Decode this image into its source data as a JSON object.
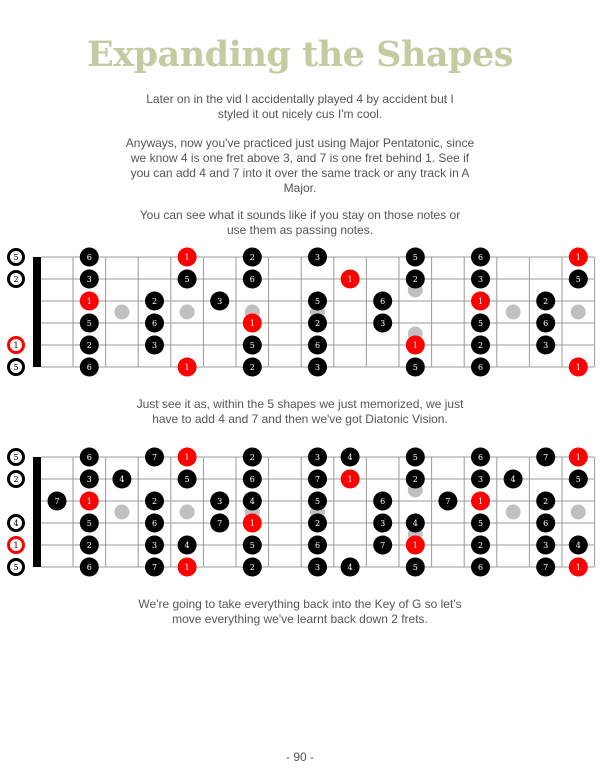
{
  "title": "Expanding the Shapes",
  "paragraphs": [
    "Later on in the vid I accidentally played 4 by accident but I styled it out nicely cus I'm cool.",
    "Anyways, now you've practiced just using Major Pentatonic, since we know 4 is one fret above 3, and 7 is one fret behind 1. See if you can add 4 and 7 into it over the same track or any track in A Major.",
    "You can see what it sounds like if you stay on those notes or use them as passing notes.",
    "Just see it as, within the 5 shapes we just memorized, we just have to add 4 and 7 and then we've got Diatonic Vision.",
    "We're going to take everything back into the Key of G so let's move everything we've learnt back down 2 frets."
  ],
  "page_number": "- 90 -",
  "colors": {
    "title": "#c3cca0",
    "root": "#ff0000",
    "note": "#000000",
    "marker": "#c0c0c0",
    "text": "#555555"
  },
  "fretboards": [
    {
      "fret_markers": [
        3,
        5,
        7,
        9,
        12,
        15,
        17
      ],
      "open_strings": [
        {
          "string": 1,
          "degree": "5",
          "root": false
        },
        {
          "string": 2,
          "degree": "2",
          "root": false
        },
        {
          "string": 5,
          "degree": "1",
          "root": true
        },
        {
          "string": 6,
          "degree": "5",
          "root": false
        }
      ],
      "notes": [
        {
          "fret": 2,
          "string": 1,
          "degree": "6"
        },
        {
          "fret": 2,
          "string": 2,
          "degree": "3"
        },
        {
          "fret": 2,
          "string": 3,
          "degree": "1",
          "root": true
        },
        {
          "fret": 2,
          "string": 4,
          "degree": "5"
        },
        {
          "fret": 2,
          "string": 5,
          "degree": "2"
        },
        {
          "fret": 2,
          "string": 6,
          "degree": "6"
        },
        {
          "fret": 4,
          "string": 3,
          "degree": "2"
        },
        {
          "fret": 4,
          "string": 4,
          "degree": "6"
        },
        {
          "fret": 4,
          "string": 5,
          "degree": "3"
        },
        {
          "fret": 5,
          "string": 1,
          "degree": "1",
          "root": true
        },
        {
          "fret": 5,
          "string": 2,
          "degree": "5"
        },
        {
          "fret": 5,
          "string": 6,
          "degree": "1",
          "root": true
        },
        {
          "fret": 6,
          "string": 3,
          "degree": "3"
        },
        {
          "fret": 7,
          "string": 1,
          "degree": "2"
        },
        {
          "fret": 7,
          "string": 2,
          "degree": "6"
        },
        {
          "fret": 7,
          "string": 4,
          "degree": "1",
          "root": true
        },
        {
          "fret": 7,
          "string": 5,
          "degree": "5"
        },
        {
          "fret": 7,
          "string": 6,
          "degree": "2"
        },
        {
          "fret": 9,
          "string": 1,
          "degree": "3"
        },
        {
          "fret": 9,
          "string": 3,
          "degree": "5"
        },
        {
          "fret": 9,
          "string": 4,
          "degree": "2"
        },
        {
          "fret": 9,
          "string": 5,
          "degree": "6"
        },
        {
          "fret": 9,
          "string": 6,
          "degree": "3"
        },
        {
          "fret": 10,
          "string": 2,
          "degree": "1",
          "root": true
        },
        {
          "fret": 11,
          "string": 3,
          "degree": "6"
        },
        {
          "fret": 11,
          "string": 4,
          "degree": "3"
        },
        {
          "fret": 12,
          "string": 1,
          "degree": "5"
        },
        {
          "fret": 12,
          "string": 2,
          "degree": "2"
        },
        {
          "fret": 12,
          "string": 5,
          "degree": "1",
          "root": true
        },
        {
          "fret": 12,
          "string": 6,
          "degree": "5"
        },
        {
          "fret": 14,
          "string": 1,
          "degree": "6"
        },
        {
          "fret": 14,
          "string": 2,
          "degree": "3"
        },
        {
          "fret": 14,
          "string": 3,
          "degree": "1",
          "root": true
        },
        {
          "fret": 14,
          "string": 4,
          "degree": "5"
        },
        {
          "fret": 14,
          "string": 5,
          "degree": "2"
        },
        {
          "fret": 14,
          "string": 6,
          "degree": "6"
        },
        {
          "fret": 16,
          "string": 3,
          "degree": "2"
        },
        {
          "fret": 16,
          "string": 4,
          "degree": "6"
        },
        {
          "fret": 16,
          "string": 5,
          "degree": "3"
        },
        {
          "fret": 17,
          "string": 1,
          "degree": "1",
          "root": true
        },
        {
          "fret": 17,
          "string": 2,
          "degree": "5"
        },
        {
          "fret": 17,
          "string": 6,
          "degree": "1",
          "root": true
        }
      ]
    },
    {
      "fret_markers": [
        3,
        5,
        7,
        9,
        12,
        15,
        17
      ],
      "open_strings": [
        {
          "string": 1,
          "degree": "5",
          "root": false
        },
        {
          "string": 2,
          "degree": "2",
          "root": false
        },
        {
          "string": 4,
          "degree": "4",
          "root": false
        },
        {
          "string": 5,
          "degree": "1",
          "root": true
        },
        {
          "string": 6,
          "degree": "5",
          "root": false
        }
      ],
      "notes": [
        {
          "fret": 1,
          "string": 3,
          "degree": "7"
        },
        {
          "fret": 2,
          "string": 1,
          "degree": "6"
        },
        {
          "fret": 2,
          "string": 2,
          "degree": "3"
        },
        {
          "fret": 2,
          "string": 3,
          "degree": "1",
          "root": true
        },
        {
          "fret": 2,
          "string": 4,
          "degree": "5"
        },
        {
          "fret": 2,
          "string": 5,
          "degree": "2"
        },
        {
          "fret": 2,
          "string": 6,
          "degree": "6"
        },
        {
          "fret": 3,
          "string": 2,
          "degree": "4"
        },
        {
          "fret": 4,
          "string": 1,
          "degree": "7"
        },
        {
          "fret": 4,
          "string": 3,
          "degree": "2"
        },
        {
          "fret": 4,
          "string": 4,
          "degree": "6"
        },
        {
          "fret": 4,
          "string": 5,
          "degree": "3"
        },
        {
          "fret": 4,
          "string": 6,
          "degree": "7"
        },
        {
          "fret": 5,
          "string": 1,
          "degree": "1",
          "root": true
        },
        {
          "fret": 5,
          "string": 2,
          "degree": "5"
        },
        {
          "fret": 5,
          "string": 5,
          "degree": "4"
        },
        {
          "fret": 5,
          "string": 6,
          "degree": "1",
          "root": true
        },
        {
          "fret": 6,
          "string": 3,
          "degree": "3"
        },
        {
          "fret": 6,
          "string": 4,
          "degree": "7"
        },
        {
          "fret": 7,
          "string": 1,
          "degree": "2"
        },
        {
          "fret": 7,
          "string": 2,
          "degree": "6"
        },
        {
          "fret": 7,
          "string": 3,
          "degree": "4"
        },
        {
          "fret": 7,
          "string": 4,
          "degree": "1",
          "root": true
        },
        {
          "fret": 7,
          "string": 5,
          "degree": "5"
        },
        {
          "fret": 7,
          "string": 6,
          "degree": "2"
        },
        {
          "fret": 9,
          "string": 1,
          "degree": "3"
        },
        {
          "fret": 9,
          "string": 2,
          "degree": "7"
        },
        {
          "fret": 9,
          "string": 3,
          "degree": "5"
        },
        {
          "fret": 9,
          "string": 4,
          "degree": "2"
        },
        {
          "fret": 9,
          "string": 5,
          "degree": "6"
        },
        {
          "fret": 9,
          "string": 6,
          "degree": "3"
        },
        {
          "fret": 10,
          "string": 1,
          "degree": "4"
        },
        {
          "fret": 10,
          "string": 2,
          "degree": "1",
          "root": true
        },
        {
          "fret": 10,
          "string": 6,
          "degree": "4"
        },
        {
          "fret": 11,
          "string": 3,
          "degree": "6"
        },
        {
          "fret": 11,
          "string": 4,
          "degree": "3"
        },
        {
          "fret": 11,
          "string": 5,
          "degree": "7"
        },
        {
          "fret": 12,
          "string": 1,
          "degree": "5"
        },
        {
          "fret": 12,
          "string": 2,
          "degree": "2"
        },
        {
          "fret": 12,
          "string": 4,
          "degree": "4"
        },
        {
          "fret": 12,
          "string": 5,
          "degree": "1",
          "root": true
        },
        {
          "fret": 12,
          "string": 6,
          "degree": "5"
        },
        {
          "fret": 13,
          "string": 3,
          "degree": "7"
        },
        {
          "fret": 14,
          "string": 1,
          "degree": "6"
        },
        {
          "fret": 14,
          "string": 2,
          "degree": "3"
        },
        {
          "fret": 14,
          "string": 3,
          "degree": "1",
          "root": true
        },
        {
          "fret": 14,
          "string": 4,
          "degree": "5"
        },
        {
          "fret": 14,
          "string": 5,
          "degree": "2"
        },
        {
          "fret": 14,
          "string": 6,
          "degree": "6"
        },
        {
          "fret": 15,
          "string": 2,
          "degree": "4"
        },
        {
          "fret": 16,
          "string": 1,
          "degree": "7"
        },
        {
          "fret": 16,
          "string": 3,
          "degree": "2"
        },
        {
          "fret": 16,
          "string": 4,
          "degree": "6"
        },
        {
          "fret": 16,
          "string": 5,
          "degree": "3"
        },
        {
          "fret": 16,
          "string": 6,
          "degree": "7"
        },
        {
          "fret": 17,
          "string": 1,
          "degree": "1",
          "root": true
        },
        {
          "fret": 17,
          "string": 2,
          "degree": "5"
        },
        {
          "fret": 17,
          "string": 5,
          "degree": "4"
        },
        {
          "fret": 17,
          "string": 6,
          "degree": "1",
          "root": true
        }
      ]
    }
  ]
}
